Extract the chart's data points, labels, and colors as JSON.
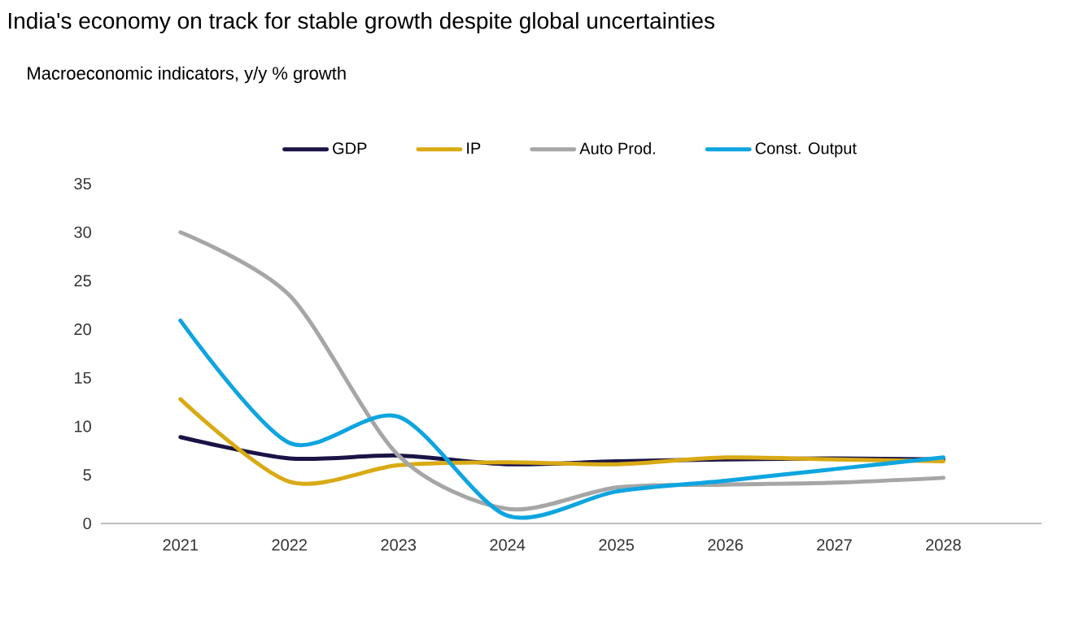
{
  "chart_data": {
    "type": "line",
    "title": "India's economy on track for stable growth despite global uncertainties",
    "subtitle": "Macroeconomic indicators, y/y % growth",
    "categories": [
      "2021",
      "2022",
      "2023",
      "2024",
      "2025",
      "2026",
      "2027",
      "2028"
    ],
    "series": [
      {
        "name": "GDP",
        "color": "#1a1446",
        "values": [
          8.9,
          6.7,
          7.0,
          6.1,
          6.4,
          6.6,
          6.7,
          6.6
        ]
      },
      {
        "name": "IP",
        "color": "#d9aa14",
        "values": [
          12.8,
          4.3,
          6.0,
          6.3,
          6.1,
          6.8,
          6.6,
          6.4
        ]
      },
      {
        "name": "Auto Prod.",
        "color": "#a6a6a6",
        "values": [
          30.0,
          23.5,
          7.0,
          1.5,
          3.7,
          4.0,
          4.2,
          4.7
        ]
      },
      {
        "name": "Const. Output",
        "color": "#0ea5e0",
        "values": [
          20.9,
          8.3,
          11.0,
          0.8,
          3.3,
          4.4,
          5.6,
          6.8
        ]
      }
    ],
    "ylim": [
      0,
      35
    ],
    "yticks": [
      0,
      5,
      10,
      15,
      20,
      25,
      30,
      35
    ],
    "grid": false,
    "legend": "top"
  }
}
